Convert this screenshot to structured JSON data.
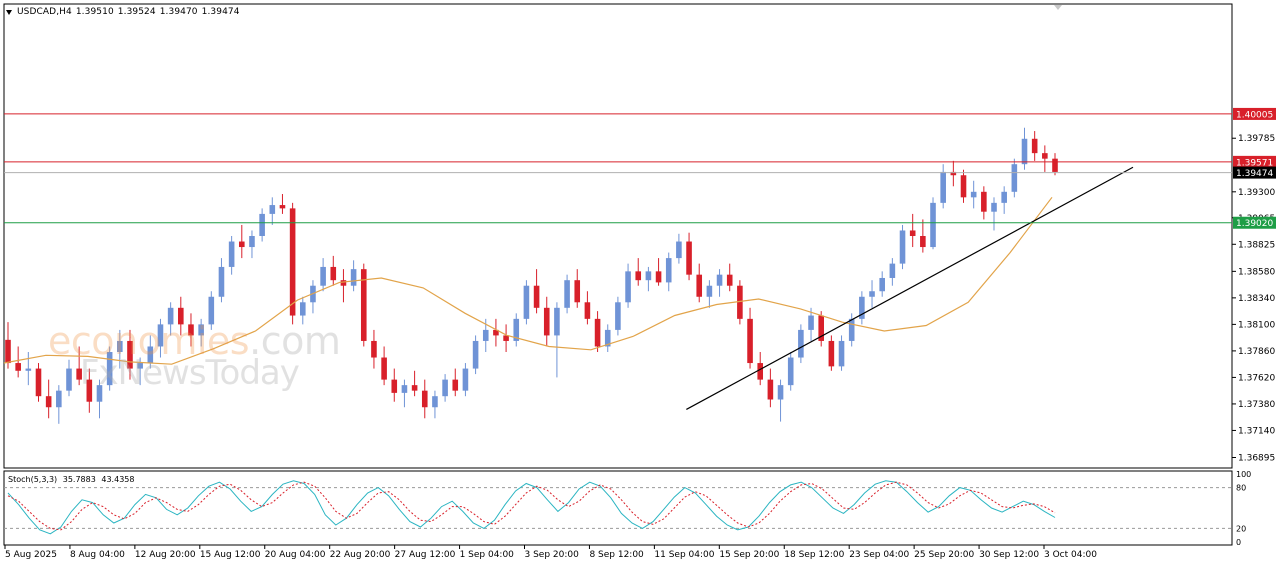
{
  "header": {
    "symbol": "USDCAD,H4",
    "open": "1.39510",
    "high": "1.39524",
    "low": "1.39470",
    "close": "1.39474"
  },
  "watermark": {
    "line1": "economies",
    "line1b": ".com",
    "line2": "FxNewsToday"
  },
  "colors": {
    "bull": "#6f93d6",
    "bear": "#d8202a",
    "ma": "#e2a44a",
    "trend": "#000000",
    "level_red": "#d8202a",
    "level_green": "#1e9e46",
    "price_label_bg": "#000000",
    "stoch_main": "#2bb5c2",
    "stoch_signal": "#d8202a"
  },
  "chart_data": [
    {
      "type": "candlestick",
      "title": "USDCAD,H4",
      "price_scale": {
        "ylim": [
          1.368,
          1.41
        ],
        "ticks": [
          "1.39785",
          "1.39300",
          "1.39065",
          "1.38825",
          "1.38580",
          "1.38340",
          "1.38100",
          "1.37860",
          "1.37620",
          "1.37380",
          "1.37140",
          "1.36895"
        ]
      },
      "time_labels": [
        "5 Aug 2025",
        "8 Aug 04:00",
        "12 Aug 20:00",
        "15 Aug 12:00",
        "20 Aug 04:00",
        "22 Aug 20:00",
        "27 Aug 12:00",
        "1 Sep 04:00",
        "3 Sep 20:00",
        "8 Sep 12:00",
        "11 Sep 04:00",
        "15 Sep 20:00",
        "18 Sep 12:00",
        "23 Sep 04:00",
        "25 Sep 20:00",
        "30 Sep 12:00",
        "3 Oct 04:00"
      ],
      "horizontal_levels": [
        {
          "price": 1.40005,
          "label": "1.40005",
          "color": "#d8202a"
        },
        {
          "price": 1.39571,
          "label": "1.39571",
          "color": "#d8202a"
        },
        {
          "price": 1.39474,
          "label": "1.39474",
          "color": "#000000"
        },
        {
          "price": 1.3902,
          "label": "1.39020",
          "color": "#1e9e46"
        }
      ],
      "trendline": {
        "from": {
          "bar": 184,
          "price": 1.3733
        },
        "to": {
          "bar": 284,
          "price": 1.3945
        }
      },
      "moving_average": [
        1.3775,
        1.3782,
        1.3781,
        1.3776,
        1.3774,
        1.3788,
        1.3804,
        1.3832,
        1.3848,
        1.3852,
        1.3843,
        1.382,
        1.38,
        1.379,
        1.3787,
        1.3799,
        1.3818,
        1.3828,
        1.3833,
        1.3824,
        1.3812,
        1.3804,
        1.3809,
        1.383,
        1.3875,
        1.3925
      ],
      "ohlc": [
        [
          1.3796,
          1.3812,
          1.377,
          1.3775
        ],
        [
          1.3775,
          1.379,
          1.3762,
          1.3768
        ],
        [
          1.3768,
          1.3785,
          1.3755,
          1.377
        ],
        [
          1.377,
          1.3775,
          1.374,
          1.3745
        ],
        [
          1.3745,
          1.376,
          1.3725,
          1.3735
        ],
        [
          1.3735,
          1.3755,
          1.372,
          1.375
        ],
        [
          1.375,
          1.3778,
          1.3745,
          1.377
        ],
        [
          1.377,
          1.379,
          1.3755,
          1.376
        ],
        [
          1.376,
          1.377,
          1.373,
          1.374
        ],
        [
          1.374,
          1.376,
          1.3725,
          1.3755
        ],
        [
          1.3755,
          1.379,
          1.375,
          1.3785
        ],
        [
          1.3785,
          1.3805,
          1.377,
          1.3795
        ],
        [
          1.3795,
          1.3805,
          1.376,
          1.377
        ],
        [
          1.377,
          1.378,
          1.3755,
          1.3775
        ],
        [
          1.3775,
          1.38,
          1.377,
          1.379
        ],
        [
          1.379,
          1.3815,
          1.378,
          1.381
        ],
        [
          1.381,
          1.383,
          1.38,
          1.3825
        ],
        [
          1.3825,
          1.3835,
          1.38,
          1.381
        ],
        [
          1.381,
          1.382,
          1.379,
          1.38
        ],
        [
          1.38,
          1.3815,
          1.379,
          1.381
        ],
        [
          1.381,
          1.384,
          1.3805,
          1.3835
        ],
        [
          1.3835,
          1.387,
          1.383,
          1.3862
        ],
        [
          1.3862,
          1.389,
          1.3855,
          1.3885
        ],
        [
          1.3885,
          1.39,
          1.387,
          1.388
        ],
        [
          1.388,
          1.3895,
          1.387,
          1.389
        ],
        [
          1.389,
          1.3915,
          1.3885,
          1.391
        ],
        [
          1.391,
          1.3925,
          1.39,
          1.3918
        ],
        [
          1.3918,
          1.3928,
          1.391,
          1.3915
        ],
        [
          1.3915,
          1.392,
          1.381,
          1.3818
        ],
        [
          1.3818,
          1.3835,
          1.381,
          1.383
        ],
        [
          1.383,
          1.385,
          1.382,
          1.3845
        ],
        [
          1.3845,
          1.387,
          1.384,
          1.3862
        ],
        [
          1.3862,
          1.3872,
          1.3845,
          1.385
        ],
        [
          1.385,
          1.386,
          1.383,
          1.3845
        ],
        [
          1.3845,
          1.3868,
          1.384,
          1.386
        ],
        [
          1.386,
          1.3865,
          1.379,
          1.3795
        ],
        [
          1.3795,
          1.3805,
          1.377,
          1.378
        ],
        [
          1.378,
          1.379,
          1.3755,
          1.376
        ],
        [
          1.376,
          1.377,
          1.374,
          1.3748
        ],
        [
          1.3748,
          1.376,
          1.3735,
          1.3755
        ],
        [
          1.3755,
          1.3768,
          1.3745,
          1.375
        ],
        [
          1.375,
          1.376,
          1.3725,
          1.3735
        ],
        [
          1.3735,
          1.375,
          1.3725,
          1.3745
        ],
        [
          1.3745,
          1.3765,
          1.374,
          1.376
        ],
        [
          1.376,
          1.377,
          1.3745,
          1.375
        ],
        [
          1.375,
          1.3775,
          1.3745,
          1.377
        ],
        [
          1.377,
          1.38,
          1.3765,
          1.3795
        ],
        [
          1.3795,
          1.3815,
          1.3785,
          1.3805
        ],
        [
          1.3805,
          1.3815,
          1.379,
          1.38
        ],
        [
          1.38,
          1.381,
          1.3785,
          1.3795
        ],
        [
          1.3795,
          1.382,
          1.379,
          1.3815
        ],
        [
          1.3815,
          1.385,
          1.381,
          1.3845
        ],
        [
          1.3845,
          1.386,
          1.382,
          1.3825
        ],
        [
          1.3825,
          1.3835,
          1.379,
          1.38
        ],
        [
          1.38,
          1.383,
          1.3762,
          1.3825
        ],
        [
          1.3825,
          1.3855,
          1.382,
          1.385
        ],
        [
          1.385,
          1.386,
          1.3825,
          1.383
        ],
        [
          1.383,
          1.384,
          1.381,
          1.3815
        ],
        [
          1.3815,
          1.3822,
          1.3785,
          1.379
        ],
        [
          1.379,
          1.381,
          1.3785,
          1.3805
        ],
        [
          1.3805,
          1.3835,
          1.38,
          1.383
        ],
        [
          1.383,
          1.3865,
          1.3825,
          1.3858
        ],
        [
          1.3858,
          1.387,
          1.3845,
          1.385
        ],
        [
          1.385,
          1.3862,
          1.384,
          1.3858
        ],
        [
          1.3858,
          1.387,
          1.3845,
          1.3848
        ],
        [
          1.3848,
          1.3875,
          1.384,
          1.387
        ],
        [
          1.387,
          1.3892,
          1.3865,
          1.3885
        ],
        [
          1.3885,
          1.3893,
          1.385,
          1.3855
        ],
        [
          1.3855,
          1.3865,
          1.383,
          1.3835
        ],
        [
          1.3835,
          1.385,
          1.3825,
          1.3845
        ],
        [
          1.3845,
          1.386,
          1.3835,
          1.3855
        ],
        [
          1.3855,
          1.3865,
          1.384,
          1.3845
        ],
        [
          1.3845,
          1.385,
          1.381,
          1.3815
        ],
        [
          1.3815,
          1.3825,
          1.377,
          1.3775
        ],
        [
          1.3775,
          1.3785,
          1.3755,
          1.376
        ],
        [
          1.376,
          1.377,
          1.3735,
          1.3742
        ],
        [
          1.3742,
          1.376,
          1.3722,
          1.3755
        ],
        [
          1.3755,
          1.3785,
          1.375,
          1.378
        ],
        [
          1.378,
          1.381,
          1.3775,
          1.3805
        ],
        [
          1.3805,
          1.3825,
          1.3795,
          1.3818
        ],
        [
          1.3818,
          1.3822,
          1.379,
          1.3795
        ],
        [
          1.3795,
          1.38,
          1.3768,
          1.3772
        ],
        [
          1.3772,
          1.38,
          1.3768,
          1.3795
        ],
        [
          1.3795,
          1.382,
          1.379,
          1.3815
        ],
        [
          1.3815,
          1.384,
          1.381,
          1.3835
        ],
        [
          1.3835,
          1.385,
          1.3825,
          1.384
        ],
        [
          1.384,
          1.3858,
          1.3835,
          1.3852
        ],
        [
          1.3852,
          1.387,
          1.3845,
          1.3865
        ],
        [
          1.3865,
          1.39,
          1.386,
          1.3895
        ],
        [
          1.3895,
          1.391,
          1.388,
          1.389
        ],
        [
          1.389,
          1.3905,
          1.3875,
          1.388
        ],
        [
          1.388,
          1.3925,
          1.3878,
          1.392
        ],
        [
          1.392,
          1.3955,
          1.3915,
          1.3948
        ],
        [
          1.3948,
          1.3958,
          1.3935,
          1.3945
        ],
        [
          1.3945,
          1.395,
          1.392,
          1.3925
        ],
        [
          1.3925,
          1.394,
          1.3915,
          1.393
        ],
        [
          1.393,
          1.3935,
          1.3905,
          1.3912
        ],
        [
          1.3912,
          1.3925,
          1.3895,
          1.392
        ],
        [
          1.392,
          1.3935,
          1.391,
          1.393
        ],
        [
          1.393,
          1.396,
          1.3925,
          1.3955
        ],
        [
          1.3955,
          1.3988,
          1.395,
          1.3978
        ],
        [
          1.3978,
          1.3985,
          1.3958,
          1.3965
        ],
        [
          1.3965,
          1.3972,
          1.3948,
          1.396
        ],
        [
          1.396,
          1.3965,
          1.3945,
          1.3948
        ]
      ],
      "stochastic": {
        "label": "Stoch(5,3,3)",
        "main_value": "35.7883",
        "signal_value": "43.4358",
        "levels": [
          20,
          80
        ],
        "scale_ticks": [
          "100",
          "80",
          "20",
          "0"
        ],
        "main": [
          72,
          55,
          35,
          18,
          12,
          22,
          45,
          62,
          58,
          40,
          28,
          35,
          55,
          70,
          65,
          48,
          40,
          50,
          68,
          82,
          88,
          78,
          60,
          45,
          52,
          70,
          85,
          90,
          86,
          70,
          40,
          25,
          35,
          55,
          72,
          80,
          68,
          48,
          30,
          22,
          35,
          52,
          60,
          45,
          28,
          20,
          32,
          55,
          75,
          86,
          80,
          62,
          45,
          58,
          78,
          88,
          82,
          65,
          42,
          28,
          20,
          30,
          48,
          66,
          80,
          72,
          55,
          38,
          25,
          18,
          22,
          38,
          58,
          74,
          84,
          88,
          80,
          65,
          50,
          42,
          55,
          72,
          85,
          90,
          88,
          74,
          58,
          44,
          52,
          68,
          80,
          76,
          62,
          50,
          44,
          52,
          60,
          55,
          45,
          36
        ],
        "signal": [
          68,
          60,
          45,
          30,
          20,
          18,
          30,
          48,
          58,
          52,
          40,
          34,
          42,
          58,
          65,
          58,
          48,
          45,
          55,
          70,
          82,
          85,
          76,
          62,
          52,
          58,
          72,
          84,
          88,
          82,
          65,
          45,
          35,
          42,
          58,
          72,
          74,
          62,
          45,
          32,
          30,
          40,
          52,
          52,
          42,
          30,
          26,
          38,
          55,
          72,
          82,
          76,
          62,
          52,
          60,
          75,
          84,
          78,
          62,
          44,
          30,
          26,
          34,
          50,
          66,
          74,
          68,
          54,
          40,
          28,
          22,
          28,
          42,
          60,
          74,
          84,
          86,
          78,
          64,
          50,
          48,
          58,
          72,
          84,
          88,
          84,
          72,
          58,
          50,
          56,
          68,
          76,
          72,
          62,
          52,
          50,
          54,
          56,
          52,
          43
        ]
      }
    }
  ]
}
